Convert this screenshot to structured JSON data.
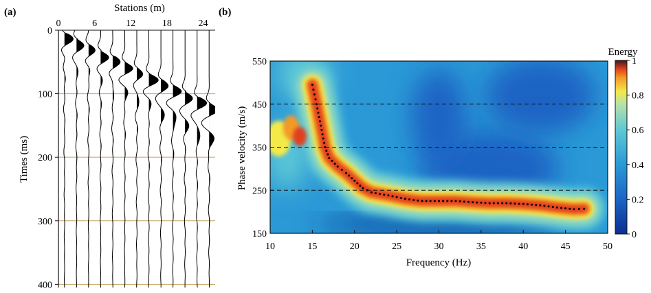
{
  "chart_data": [
    {
      "type": "line",
      "panel_label": "(a)",
      "description_kind": "seismic shot gather (wiggle traces)",
      "xlabel": "Stations (m)",
      "ylabel": "Times (ms)",
      "x_ticks": [
        0,
        6,
        12,
        18,
        24
      ],
      "y_ticks": [
        0,
        100,
        200,
        300,
        400
      ],
      "xlim": [
        0,
        26
      ],
      "ylim": [
        0,
        405
      ],
      "gridlines_y": [
        100,
        200,
        300,
        400
      ],
      "trace_offsets": [
        1,
        3,
        5,
        7,
        9,
        11,
        13,
        15,
        17,
        19,
        21,
        23,
        25
      ],
      "first_break_slope_ms_per_m": 4.6,
      "first_break_intercept_ms": 10,
      "grid_color": "#c2a25a"
    },
    {
      "type": "heatmap",
      "panel_label": "(b)",
      "xlabel": "Frequency (Hz)",
      "ylabel": "Phase velocity (m/s)",
      "x_ticks": [
        10,
        15,
        20,
        25,
        30,
        35,
        40,
        45,
        50
      ],
      "y_ticks": [
        150,
        250,
        350,
        450,
        550
      ],
      "xlim": [
        10,
        50
      ],
      "ylim": [
        150,
        550
      ],
      "dashed_lines_y": [
        250,
        350,
        450
      ],
      "colorbar": {
        "title": "Energy",
        "ticks": [
          0,
          0.2,
          0.4,
          0.6,
          0.8,
          1
        ],
        "tick_labels": [
          "0",
          "0.2",
          "0.4",
          "0.6",
          "0.8",
          "1"
        ],
        "stops": [
          {
            "v": 0.0,
            "color": "#0a2f8f"
          },
          {
            "v": 0.2,
            "color": "#1d64c4"
          },
          {
            "v": 0.4,
            "color": "#2a99d6"
          },
          {
            "v": 0.6,
            "color": "#5fc8d6"
          },
          {
            "v": 0.75,
            "color": "#b7e2a6"
          },
          {
            "v": 0.82,
            "color": "#f3e94a"
          },
          {
            "v": 0.9,
            "color": "#f39a26"
          },
          {
            "v": 0.95,
            "color": "#e2401c"
          },
          {
            "v": 1.0,
            "color": "#3b1a1a"
          }
        ]
      },
      "dispersion_curve": {
        "x": [
          15.0,
          15.5,
          16.0,
          16.5,
          17.0,
          18.0,
          19.0,
          20.0,
          21.0,
          22.0,
          24.0,
          26.0,
          28.0,
          30.0,
          32.0,
          34.0,
          36.0,
          38.0,
          40.0,
          42.0,
          44.0,
          46.0,
          47.2
        ],
        "y": [
          495,
          450,
          400,
          350,
          325,
          305,
          290,
          272,
          255,
          245,
          238,
          230,
          225,
          225,
          225,
          222,
          220,
          220,
          218,
          215,
          210,
          206,
          207
        ]
      }
    }
  ]
}
